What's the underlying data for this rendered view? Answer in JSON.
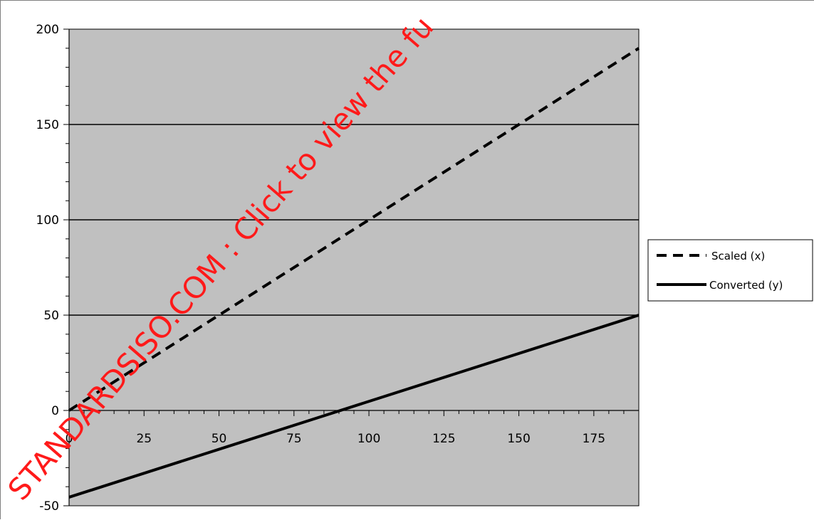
{
  "chart_data": {
    "type": "line",
    "title": "",
    "xlabel": "",
    "ylabel": "",
    "xlim": [
      0,
      190
    ],
    "ylim": [
      -50,
      200
    ],
    "x_ticks": [
      0,
      25,
      50,
      75,
      100,
      125,
      150,
      175
    ],
    "x_tick_labels": [
      "0",
      "25",
      "50",
      "75",
      "100",
      "125",
      "150",
      "175"
    ],
    "y_ticks": [
      -50,
      0,
      50,
      100,
      150,
      200
    ],
    "y_tick_labels": [
      "-50",
      "0",
      "50",
      "100",
      "150",
      "200"
    ],
    "grid": "horizontal major lines",
    "plot_background": "#c0c0c0",
    "legend_position": "right",
    "series": [
      {
        "name": "Scaled (x)",
        "style": "dashed",
        "color": "#000000",
        "x": [
          0,
          190
        ],
        "y": [
          0,
          190
        ]
      },
      {
        "name": "Converted (y)",
        "style": "solid",
        "color": "#000000",
        "x": [
          0,
          190
        ],
        "y": [
          -45.5,
          50
        ]
      }
    ]
  },
  "watermark": {
    "text": "STANDARDSISO.COM : Click to view the fu",
    "color": "#ff1a1a"
  }
}
